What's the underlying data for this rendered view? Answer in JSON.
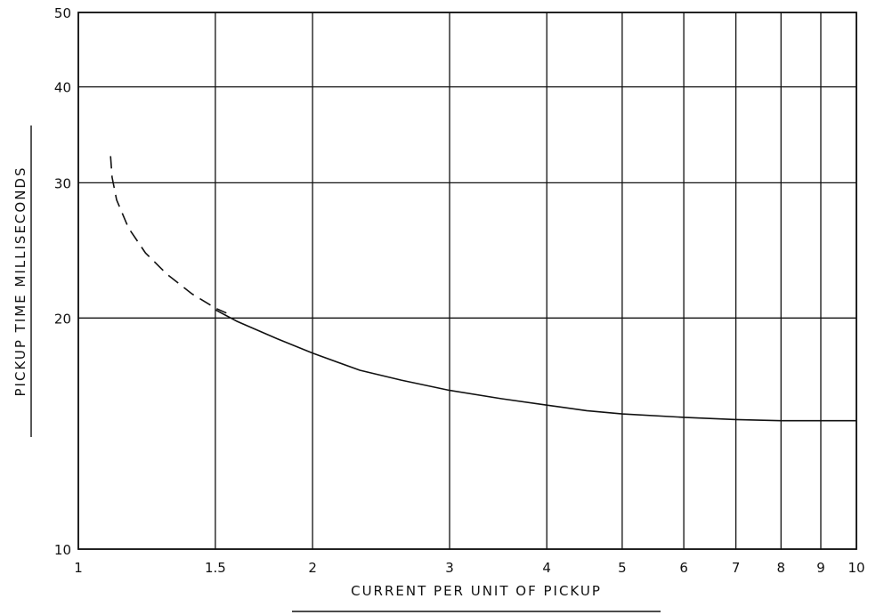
{
  "chart_data": {
    "type": "line",
    "title": "",
    "xlabel": "CURRENT PER UNIT OF PICKUP",
    "ylabel": "PICKUP TIME MILLISECONDS",
    "x_scale": "log",
    "y_scale": "log",
    "xlim": [
      1,
      10
    ],
    "ylim": [
      10,
      50
    ],
    "grid": true,
    "x_ticks": [
      {
        "value": 1,
        "label": "1"
      },
      {
        "value": 1.5,
        "label": "1.5"
      },
      {
        "value": 2,
        "label": "2"
      },
      {
        "value": 3,
        "label": "3"
      },
      {
        "value": 4,
        "label": "4"
      },
      {
        "value": 5,
        "label": "5"
      },
      {
        "value": 6,
        "label": "6"
      },
      {
        "value": 7,
        "label": "7"
      },
      {
        "value": 8,
        "label": "8"
      },
      {
        "value": 9,
        "label": "9"
      },
      {
        "value": 10,
        "label": "10"
      }
    ],
    "y_ticks": [
      {
        "value": 10,
        "label": "10"
      },
      {
        "value": 20,
        "label": "20"
      },
      {
        "value": 30,
        "label": "30"
      },
      {
        "value": 40,
        "label": "40"
      },
      {
        "value": 50,
        "label": "50"
      }
    ],
    "series": [
      {
        "style": "dashed",
        "x": [
          1.1,
          1.105,
          1.12,
          1.16,
          1.22,
          1.3,
          1.4,
          1.5,
          1.55
        ],
        "y": [
          32.5,
          30.5,
          28.5,
          26.2,
          24.3,
          22.8,
          21.5,
          20.6,
          20.3
        ]
      },
      {
        "style": "solid",
        "x": [
          1.5,
          1.6,
          1.8,
          2.0,
          2.3,
          2.6,
          3.0,
          3.5,
          4.0,
          4.5,
          5.0,
          6.0,
          7.0,
          8.0,
          9.0,
          10.0
        ],
        "y": [
          20.5,
          19.8,
          18.8,
          18.0,
          17.1,
          16.6,
          16.1,
          15.7,
          15.4,
          15.15,
          15.0,
          14.85,
          14.75,
          14.7,
          14.7,
          14.7
        ]
      }
    ]
  }
}
